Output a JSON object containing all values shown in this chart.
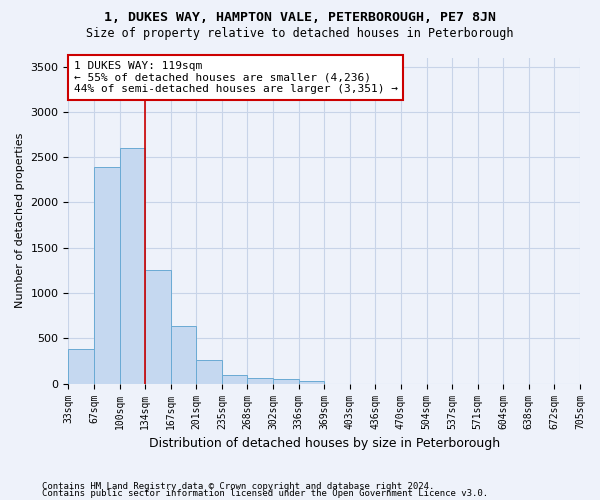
{
  "title": "1, DUKES WAY, HAMPTON VALE, PETERBOROUGH, PE7 8JN",
  "subtitle": "Size of property relative to detached houses in Peterborough",
  "xlabel": "Distribution of detached houses by size in Peterborough",
  "ylabel": "Number of detached properties",
  "footer_line1": "Contains HM Land Registry data © Crown copyright and database right 2024.",
  "footer_line2": "Contains public sector information licensed under the Open Government Licence v3.0.",
  "bin_labels": [
    "33sqm",
    "67sqm",
    "100sqm",
    "134sqm",
    "167sqm",
    "201sqm",
    "235sqm",
    "268sqm",
    "302sqm",
    "336sqm",
    "369sqm",
    "403sqm",
    "436sqm",
    "470sqm",
    "504sqm",
    "537sqm",
    "571sqm",
    "604sqm",
    "638sqm",
    "672sqm",
    "705sqm"
  ],
  "bar_values": [
    380,
    2390,
    2600,
    1250,
    640,
    260,
    100,
    60,
    55,
    35,
    0,
    0,
    0,
    0,
    0,
    0,
    0,
    0,
    0,
    0
  ],
  "bar_color": "#c5d8f0",
  "bar_edge_color": "#6aaad4",
  "grid_color": "#c8d4e8",
  "bg_color": "#eef2fa",
  "property_line_x": 3.0,
  "annotation_text_line1": "1 DUKES WAY: 119sqm",
  "annotation_text_line2": "← 55% of detached houses are smaller (4,236)",
  "annotation_text_line3": "44% of semi-detached houses are larger (3,351) →",
  "annotation_box_facecolor": "#ffffff",
  "annotation_box_edgecolor": "#cc0000",
  "vline_color": "#cc0000",
  "ylim": [
    0,
    3600
  ],
  "yticks": [
    0,
    500,
    1000,
    1500,
    2000,
    2500,
    3000,
    3500
  ]
}
